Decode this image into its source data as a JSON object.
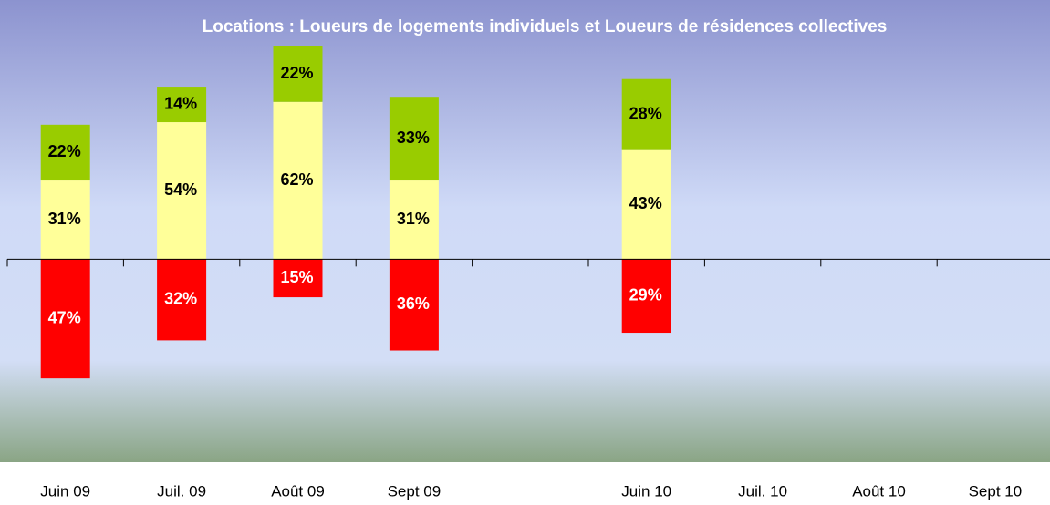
{
  "chart_data": {
    "type": "bar",
    "stacked": true,
    "title": "Locations : Loueurs de logements individuels et Loueurs de résidences collectives",
    "categories": [
      "Juin 09",
      "Juil. 09",
      "Août 09",
      "Sept 09",
      null,
      "Juin 10",
      "Juil. 10",
      "Août 10",
      "Sept 10"
    ],
    "series": [
      {
        "color": "#ff0000",
        "values": [
          -47,
          -32,
          -15,
          -36,
          null,
          -29,
          null,
          null,
          null
        ],
        "value_labels": [
          "47%",
          "32%",
          "15%",
          "36%",
          null,
          "29%",
          null,
          null,
          null
        ]
      },
      {
        "color": "#ffff99",
        "values": [
          31,
          54,
          62,
          31,
          null,
          43,
          null,
          null,
          null
        ],
        "value_labels": [
          "31%",
          "54%",
          "62%",
          "31%",
          null,
          "43%",
          null,
          null,
          null
        ]
      },
      {
        "color": "#99cc00",
        "values": [
          22,
          14,
          22,
          33,
          null,
          28,
          null,
          null,
          null
        ],
        "value_labels": [
          "22%",
          "14%",
          "22%",
          "33%",
          null,
          "28%",
          null,
          null,
          null
        ]
      }
    ],
    "ylim": [
      -80,
      100
    ]
  }
}
